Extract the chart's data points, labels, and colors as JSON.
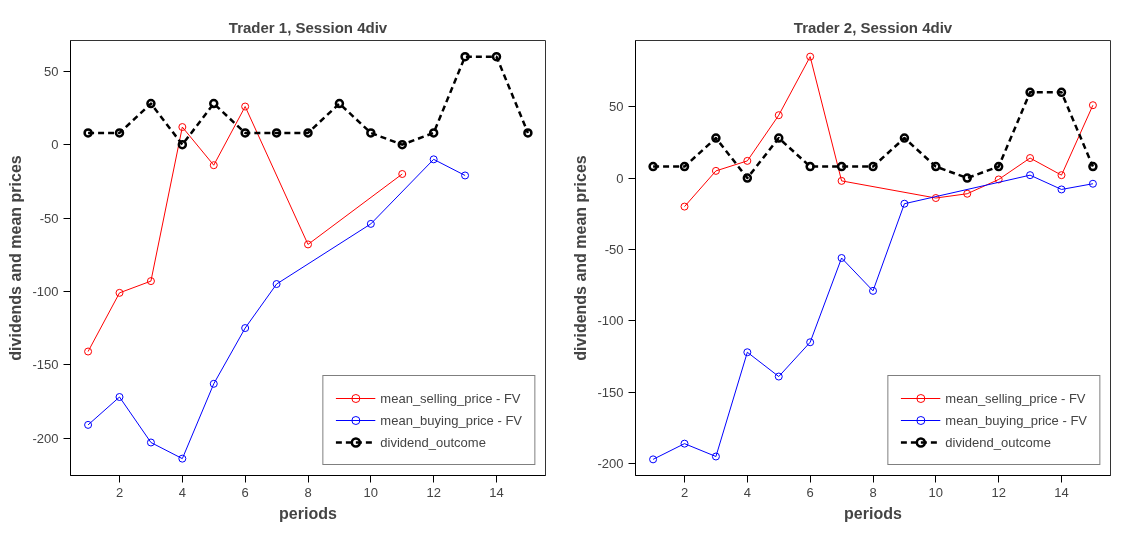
{
  "chart_data": [
    {
      "type": "line",
      "title": "Trader 1, Session 4div",
      "xlabel": "periods",
      "ylabel": "dividends and mean prices",
      "xlim": [
        0.44,
        15.56
      ],
      "ylim": [
        -225.5,
        71
      ],
      "xticks": [
        2,
        4,
        6,
        8,
        10,
        12,
        14
      ],
      "yticks": [
        -200,
        -150,
        -100,
        -50,
        0,
        50
      ],
      "grid": false,
      "legend": "bottom right",
      "marker": "circle",
      "series": [
        {
          "name": "mean_selling_price - FV",
          "color": "#ff0000",
          "line_style": "solid",
          "x": [
            1,
            2,
            3,
            4,
            5,
            6,
            8,
            11
          ],
          "values": [
            -141,
            -101,
            -93,
            12,
            -14,
            26,
            -68,
            -20
          ]
        },
        {
          "name": "mean_buying_price - FV",
          "color": "#0000ff",
          "line_style": "solid",
          "x": [
            1,
            2,
            3,
            4,
            5,
            6,
            7,
            10,
            12,
            13
          ],
          "values": [
            -191,
            -172,
            -203,
            -214,
            -163,
            -125,
            -95,
            -54,
            -10,
            -21
          ]
        },
        {
          "name": "dividend_outcome",
          "color": "#000000",
          "line_style": "dashed",
          "x": [
            1,
            2,
            3,
            4,
            5,
            6,
            7,
            8,
            9,
            10,
            11,
            12,
            13,
            14,
            15
          ],
          "values": [
            8,
            8,
            28,
            0,
            28,
            8,
            8,
            8,
            28,
            8,
            0,
            8,
            60,
            60,
            8
          ]
        }
      ]
    },
    {
      "type": "line",
      "title": "Trader 2, Session 4div",
      "xlabel": "periods",
      "ylabel": "dividends and mean prices",
      "xlim": [
        0.44,
        15.56
      ],
      "ylim": [
        -208.3,
        96.3
      ],
      "xticks": [
        2,
        4,
        6,
        8,
        10,
        12,
        14
      ],
      "yticks": [
        -200,
        -150,
        -100,
        -50,
        0,
        50
      ],
      "grid": false,
      "legend": "bottom right",
      "marker": "circle",
      "series": [
        {
          "name": "mean_selling_price - FV",
          "color": "#ff0000",
          "line_style": "solid",
          "x": [
            2,
            3,
            4,
            5,
            6,
            7,
            10,
            11,
            12,
            13,
            14,
            15
          ],
          "values": [
            -20,
            5,
            12,
            44,
            85,
            -2,
            -14,
            -11,
            -1,
            14,
            2,
            51
          ]
        },
        {
          "name": "mean_buying_price - FV",
          "color": "#0000ff",
          "line_style": "solid",
          "x": [
            1,
            2,
            3,
            4,
            5,
            6,
            7,
            8,
            9,
            13,
            14,
            15
          ],
          "values": [
            -197,
            -186,
            -195,
            -122,
            -139,
            -115,
            -56,
            -79,
            -18,
            2,
            -8,
            -4
          ]
        },
        {
          "name": "dividend_outcome",
          "color": "#000000",
          "line_style": "dashed",
          "x": [
            1,
            2,
            3,
            4,
            5,
            6,
            7,
            8,
            9,
            10,
            11,
            12,
            13,
            14,
            15
          ],
          "values": [
            8,
            8,
            28,
            0,
            28,
            8,
            8,
            8,
            28,
            8,
            0,
            8,
            60,
            60,
            8
          ]
        }
      ]
    }
  ]
}
